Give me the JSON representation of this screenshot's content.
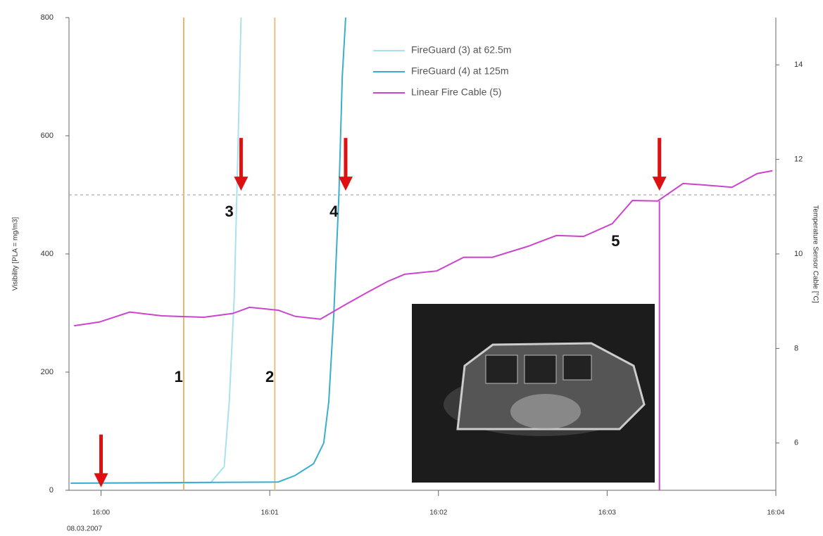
{
  "chart_data": {
    "type": "line",
    "y_label": "Visibility [PLA = mg/m3]",
    "y2_label": "Temperature Sensor Cable [°C]",
    "date_label": "08.03.2007",
    "xlim": [
      -0.19,
      4.0
    ],
    "xticks": [
      {
        "value": 0,
        "label": "16:00"
      },
      {
        "value": 1,
        "label": "16:01"
      },
      {
        "value": 2,
        "label": "16:02"
      },
      {
        "value": 3,
        "label": "16:03"
      },
      {
        "value": 4,
        "label": "16:04"
      }
    ],
    "ylim": [
      0,
      800
    ],
    "yticks": [
      0,
      200,
      400,
      600,
      800
    ],
    "y2lim": [
      5,
      15
    ],
    "y2ticks": [
      6,
      8,
      10,
      12,
      14
    ],
    "threshold": 500,
    "series": [
      {
        "name": "FireGuard (3) at 62.5m",
        "color": "#a8e2ee",
        "x": [
          -0.18,
          0.45,
          0.65,
          0.73,
          0.76,
          0.79,
          0.81,
          0.83
        ],
        "values": [
          12,
          12,
          13,
          40,
          150,
          330,
          560,
          800
        ]
      },
      {
        "name": "FireGuard (4) at  125m",
        "color": "#3aaed0",
        "x": [
          -0.18,
          1.05,
          1.15,
          1.26,
          1.32,
          1.35,
          1.38,
          1.41,
          1.43,
          1.45
        ],
        "values": [
          12,
          14,
          25,
          45,
          80,
          150,
          300,
          500,
          700,
          800
        ]
      },
      {
        "name": "Linear Fire Cable (5)",
        "color": "#cc44cc",
        "axis": "y2",
        "x": [
          -0.16,
          -0.01,
          0.17,
          0.36,
          0.61,
          0.78,
          0.88,
          1.05,
          1.15,
          1.3,
          1.45,
          1.57,
          1.7,
          1.8,
          1.99,
          2.15,
          2.32,
          2.53,
          2.7,
          2.86,
          3.03,
          3.15,
          3.3,
          3.45,
          3.57,
          3.74,
          3.89,
          3.98
        ],
        "values": [
          8.48,
          8.56,
          8.77,
          8.69,
          8.66,
          8.74,
          8.87,
          8.81,
          8.68,
          8.62,
          8.93,
          9.17,
          9.42,
          9.57,
          9.64,
          9.93,
          9.93,
          10.16,
          10.39,
          10.37,
          10.64,
          11.13,
          11.12,
          11.49,
          11.46,
          11.41,
          11.7,
          11.76
        ]
      }
    ],
    "markers": [
      {
        "label": "1",
        "x": 0.49,
        "color": "#e8b47a"
      },
      {
        "label": "2",
        "x": 1.03,
        "color": "#e8c080"
      }
    ],
    "alarm_line": {
      "x": 3.31,
      "color": "#cc44cc"
    },
    "arrows": {
      "color": "#dd1111",
      "x": [
        0,
        0.83,
        1.45,
        3.31
      ],
      "y": [
        5,
        507,
        507,
        507
      ]
    },
    "annotations": [
      {
        "text": "1",
        "x": 0.46,
        "y": 190
      },
      {
        "text": "2",
        "x": 1.0,
        "y": 190
      },
      {
        "text": "3",
        "x": 0.76,
        "y": 470
      },
      {
        "text": "4",
        "x": 1.38,
        "y": 470
      },
      {
        "text": "5",
        "x": 3.05,
        "y": 420
      }
    ]
  }
}
